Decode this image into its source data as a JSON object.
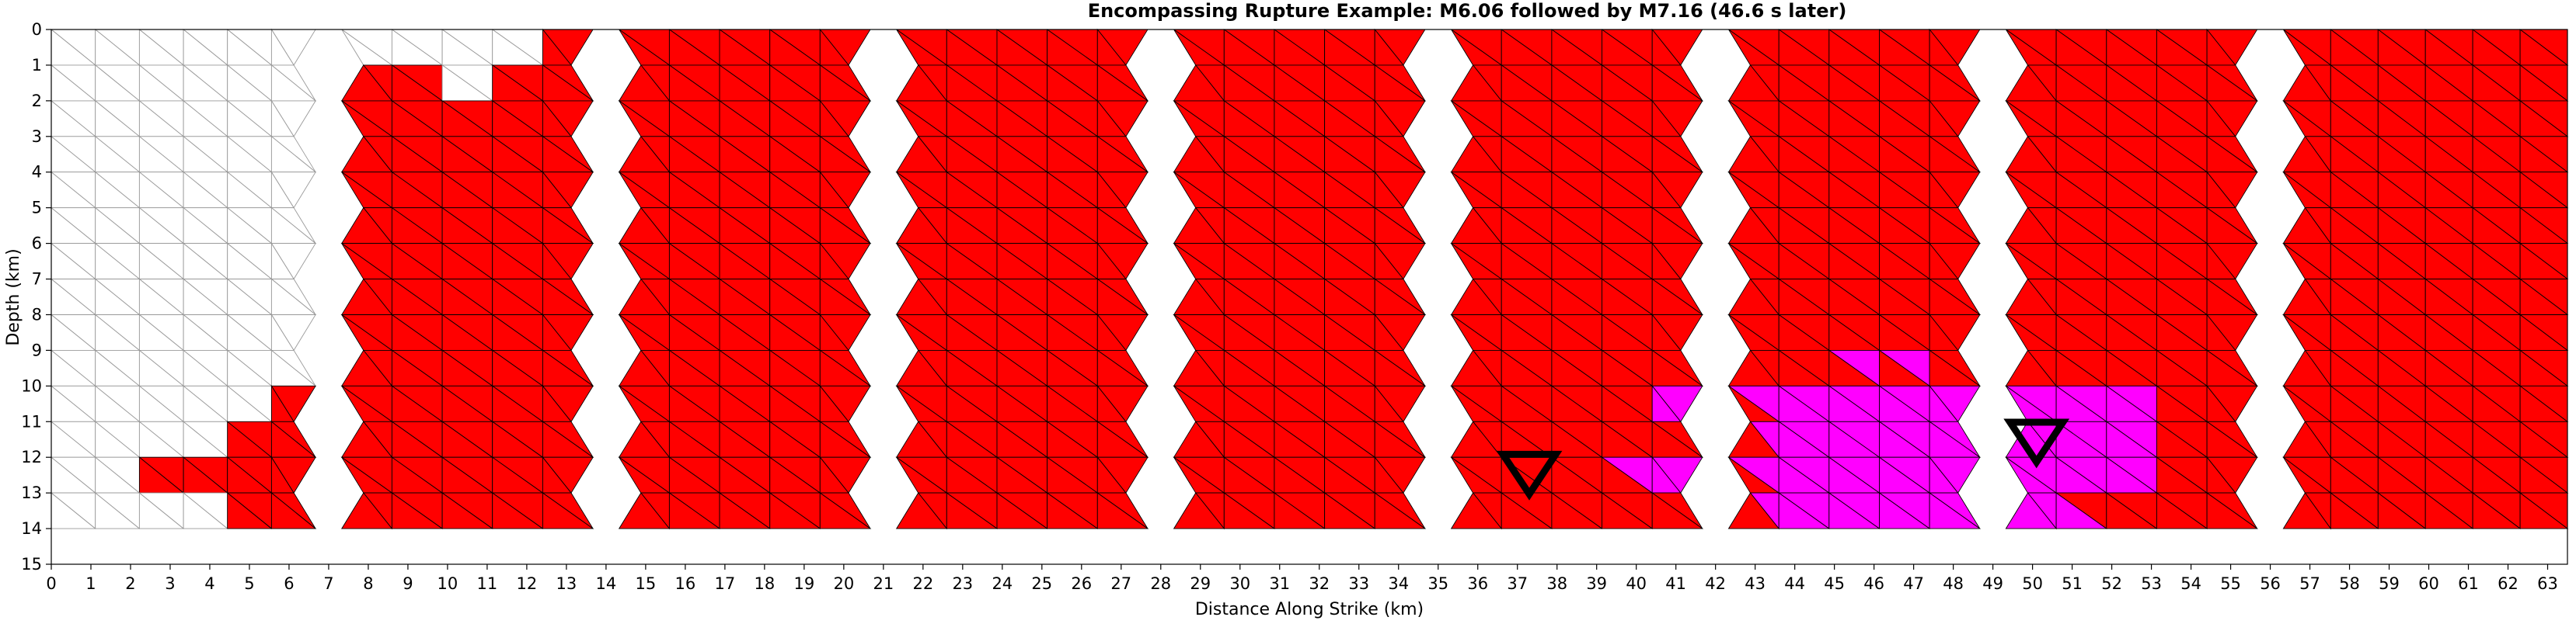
{
  "chart_data": {
    "type": "triangular-mesh",
    "title": "Encompassing Rupture Example: M6.06 followed by M7.16 (46.6 s later)",
    "xlabel": "Distance Along Strike (km)",
    "ylabel": "Depth (km)",
    "xlim": [
      0,
      63.5
    ],
    "ylim": [
      15,
      0
    ],
    "x_ticks": [
      "0",
      "1",
      "2",
      "3",
      "4",
      "5",
      "6",
      "7",
      "8",
      "9",
      "10",
      "11",
      "12",
      "13",
      "14",
      "15",
      "16",
      "17",
      "18",
      "19",
      "20",
      "21",
      "22",
      "23",
      "24",
      "25",
      "26",
      "27",
      "28",
      "29",
      "30",
      "31",
      "32",
      "33",
      "34",
      "35",
      "36",
      "37",
      "38",
      "39",
      "40",
      "41",
      "42",
      "43",
      "44",
      "45",
      "46",
      "47",
      "48",
      "49",
      "50",
      "51",
      "52",
      "53",
      "54",
      "55",
      "56",
      "57",
      "58",
      "59",
      "60",
      "61",
      "62",
      "63"
    ],
    "y_ticks": [
      "0",
      "1",
      "2",
      "3",
      "4",
      "5",
      "6",
      "7",
      "8",
      "9",
      "10",
      "11",
      "12",
      "13",
      "14",
      "15"
    ],
    "mesh_depth_km": 14,
    "colors": {
      "first_rupture": "#ff0000",
      "second_rupture": "#ff00ff",
      "unruptured": "#ffffff",
      "mesh_edge": "#000000",
      "unruptured_edge": "#999999"
    },
    "sections": [
      {
        "x_start": 0,
        "x_end": 7,
        "state": "mostly-unruptured"
      },
      {
        "x_start": 7,
        "x_end": 14,
        "state": "first_rupture"
      },
      {
        "x_start": 14,
        "x_end": 21,
        "state": "first_rupture"
      },
      {
        "x_start": 21,
        "x_end": 28,
        "state": "first_rupture"
      },
      {
        "x_start": 28,
        "x_end": 35,
        "state": "first_rupture"
      },
      {
        "x_start": 35,
        "x_end": 42,
        "state": "first_rupture"
      },
      {
        "x_start": 42,
        "x_end": 49,
        "state": "first_rupture"
      },
      {
        "x_start": 49,
        "x_end": 56,
        "state": "first_rupture"
      },
      {
        "x_start": 56,
        "x_end": 63.5,
        "state": "first_rupture"
      }
    ],
    "hypocenters": [
      {
        "x": 37.3,
        "depth": 12.3
      },
      {
        "x": 50.1,
        "depth": 11.4
      }
    ]
  }
}
